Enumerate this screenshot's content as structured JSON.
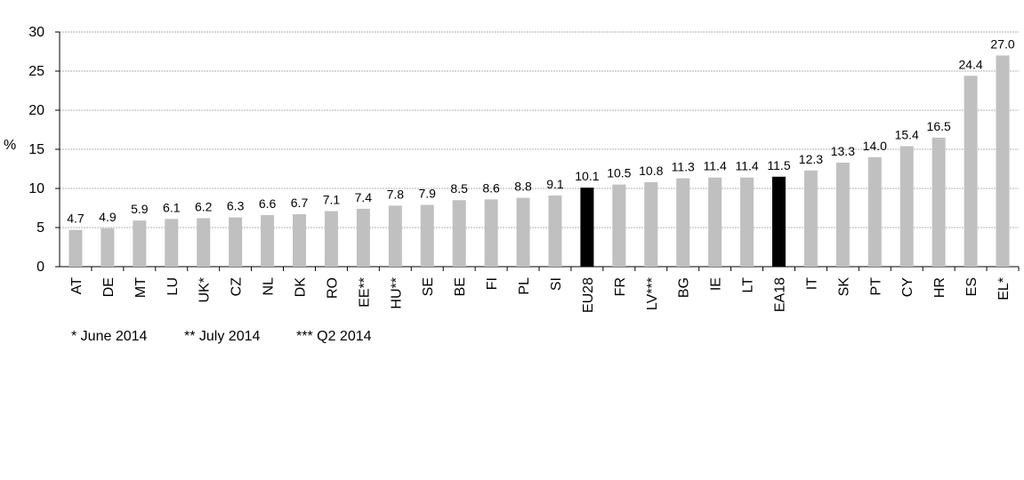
{
  "chart_data": {
    "type": "bar",
    "ylabel": "%",
    "ylim": [
      0,
      30
    ],
    "yticks": [
      0,
      5,
      10,
      15,
      20,
      25,
      30
    ],
    "grid": true,
    "categories": [
      "AT",
      "DE",
      "MT",
      "LU",
      "UK*",
      "CZ",
      "NL",
      "DK",
      "RO",
      "EE**",
      "HU**",
      "SE",
      "BE",
      "FI",
      "PL",
      "SI",
      "EU28",
      "FR",
      "LV***",
      "BG",
      "IE",
      "LT",
      "EA18",
      "IT",
      "SK",
      "PT",
      "CY",
      "HR",
      "ES",
      "EL*"
    ],
    "values": [
      4.7,
      4.9,
      5.9,
      6.1,
      6.2,
      6.3,
      6.6,
      6.7,
      7.1,
      7.4,
      7.8,
      7.9,
      8.5,
      8.6,
      8.8,
      9.1,
      10.1,
      10.5,
      10.8,
      11.3,
      11.4,
      11.4,
      11.5,
      12.3,
      13.3,
      14.0,
      15.4,
      16.5,
      24.4,
      27.0
    ],
    "value_labels": [
      "4.7",
      "4.9",
      "5.9",
      "6.1",
      "6.2",
      "6.3",
      "6.6",
      "6.7",
      "7.1",
      "7.4",
      "7.8",
      "7.9",
      "8.5",
      "8.6",
      "8.8",
      "9.1",
      "10.1",
      "10.5",
      "10.8",
      "11.3",
      "11.4",
      "11.4",
      "11.5",
      "12.3",
      "13.3",
      "14.0",
      "15.4",
      "16.5",
      "24.4",
      "27.0"
    ],
    "highlighted": [
      "EU28",
      "EA18"
    ],
    "colors": {
      "bar": "#c0c0c0",
      "highlight": "#000000",
      "grid": "#b0b0b0"
    }
  },
  "footnotes": [
    "* June 2014",
    "** July 2014",
    "*** Q2 2014"
  ]
}
